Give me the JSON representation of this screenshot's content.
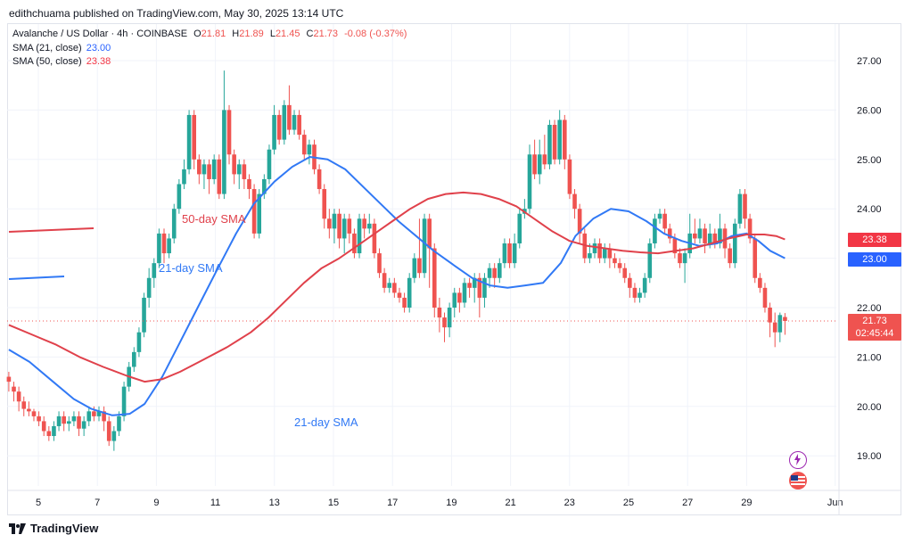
{
  "publisher": "edithchuama published on TradingView.com, May 30, 2025 13:14 UTC",
  "legend": {
    "symbol": "Avalanche / US Dollar · 4h · COINBASE",
    "o_label": "O",
    "o": "21.81",
    "h_label": "H",
    "h": "21.89",
    "l_label": "L",
    "l": "21.45",
    "c_label": "C",
    "c": "21.73",
    "change": "-0.08 (-0.37%)",
    "sma21_label": "SMA (21, close)",
    "sma21_value": "23.00",
    "sma50_label": "SMA (50, close)",
    "sma50_value": "23.38"
  },
  "badges": {
    "sma50": "23.38",
    "sma21": "23.00",
    "price": "21.73",
    "countdown": "02:45:44"
  },
  "annotations": {
    "sma50_text": "50-day SMA",
    "sma21_text_top": "21-day SMA",
    "sma21_text_bottom": "21-day SMA"
  },
  "logo_text": "TradingView",
  "colors": {
    "up": "#26a69a",
    "down": "#ef5350",
    "sma21": "#3179f5",
    "sma50": "#e0414b",
    "sma21_badge": "#2962ff",
    "sma50_badge": "#f23645",
    "price_badge": "#ef5350",
    "grid": "#f0f3fa",
    "axis_text": "#131722"
  },
  "chart_data": {
    "type": "candlestick",
    "title": "Avalanche / US Dollar · 4h · COINBASE",
    "ylim": [
      18.5,
      27.5
    ],
    "y_ticks": [
      "19.00",
      "20.00",
      "21.00",
      "22.00",
      "23.00",
      "24.00",
      "25.00",
      "26.00",
      "27.00"
    ],
    "x_ticks": [
      "5",
      "7",
      "9",
      "11",
      "13",
      "15",
      "17",
      "19",
      "21",
      "23",
      "25",
      "27",
      "29",
      "Jun"
    ],
    "x_tick_days": [
      5,
      7,
      9,
      11,
      13,
      15,
      17,
      19,
      21,
      23,
      25,
      27,
      29,
      32
    ],
    "last_price": 21.73,
    "candles": [
      [
        20.6,
        20.5,
        20.7,
        20.3
      ],
      [
        20.4,
        20.3,
        20.5,
        20.1
      ],
      [
        20.3,
        20.1,
        20.4,
        19.9
      ],
      [
        20.1,
        19.95,
        20.2,
        19.8
      ],
      [
        19.95,
        19.9,
        20.1,
        19.8
      ],
      [
        19.9,
        19.8,
        19.95,
        19.7
      ],
      [
        19.8,
        19.7,
        19.9,
        19.6
      ],
      [
        19.7,
        19.5,
        19.8,
        19.4
      ],
      [
        19.5,
        19.4,
        19.6,
        19.3
      ],
      [
        19.4,
        19.6,
        19.7,
        19.3
      ],
      [
        19.6,
        19.8,
        19.9,
        19.5
      ],
      [
        19.8,
        19.65,
        19.9,
        19.5
      ],
      [
        19.65,
        19.7,
        19.8,
        19.5
      ],
      [
        19.7,
        19.8,
        19.9,
        19.6
      ],
      [
        19.8,
        19.55,
        19.9,
        19.4
      ],
      [
        19.55,
        19.7,
        19.8,
        19.4
      ],
      [
        19.7,
        19.9,
        20.0,
        19.6
      ],
      [
        19.9,
        19.8,
        20.0,
        19.7
      ],
      [
        19.8,
        19.9,
        20.0,
        19.7
      ],
      [
        19.9,
        19.7,
        20.0,
        19.5
      ],
      [
        19.7,
        19.3,
        19.8,
        19.2
      ],
      [
        19.3,
        19.5,
        19.6,
        19.1
      ],
      [
        19.5,
        19.8,
        19.9,
        19.4
      ],
      [
        19.8,
        20.4,
        20.5,
        19.7
      ],
      [
        20.4,
        20.8,
        20.9,
        20.3
      ],
      [
        20.8,
        21.1,
        21.2,
        20.7
      ],
      [
        21.1,
        21.5,
        21.6,
        21.0
      ],
      [
        21.5,
        22.2,
        22.3,
        21.4
      ],
      [
        22.2,
        22.6,
        22.8,
        22.0
      ],
      [
        22.6,
        22.9,
        23.0,
        22.4
      ],
      [
        22.9,
        23.5,
        23.6,
        22.8
      ],
      [
        23.5,
        23.1,
        23.6,
        22.9
      ],
      [
        23.1,
        23.4,
        23.5,
        23.0
      ],
      [
        23.4,
        24.0,
        24.1,
        23.3
      ],
      [
        24.0,
        24.5,
        24.6,
        23.9
      ],
      [
        24.5,
        24.8,
        25.0,
        24.4
      ],
      [
        24.8,
        25.9,
        26.0,
        24.7
      ],
      [
        25.9,
        25.0,
        26.0,
        24.8
      ],
      [
        25.0,
        24.7,
        25.1,
        24.5
      ],
      [
        24.7,
        24.9,
        25.0,
        24.4
      ],
      [
        24.9,
        24.6,
        25.0,
        24.3
      ],
      [
        24.6,
        25.0,
        25.1,
        24.5
      ],
      [
        25.0,
        24.3,
        25.1,
        24.2
      ],
      [
        24.3,
        26.0,
        26.8,
        24.2
      ],
      [
        26.0,
        25.1,
        26.1,
        24.9
      ],
      [
        25.1,
        24.7,
        25.2,
        24.5
      ],
      [
        24.7,
        24.9,
        25.0,
        24.4
      ],
      [
        24.9,
        24.6,
        25.0,
        24.4
      ],
      [
        24.6,
        24.4,
        24.7,
        24.2
      ],
      [
        24.4,
        23.5,
        24.5,
        23.4
      ],
      [
        23.5,
        24.3,
        24.4,
        23.4
      ],
      [
        24.3,
        24.6,
        24.7,
        24.2
      ],
      [
        24.6,
        25.2,
        25.3,
        24.5
      ],
      [
        25.2,
        25.9,
        26.1,
        25.1
      ],
      [
        25.9,
        25.4,
        26.0,
        25.3
      ],
      [
        25.4,
        26.1,
        26.2,
        25.3
      ],
      [
        26.1,
        25.6,
        26.5,
        25.5
      ],
      [
        25.6,
        25.9,
        26.0,
        25.5
      ],
      [
        25.9,
        25.5,
        26.0,
        25.4
      ],
      [
        25.5,
        25.1,
        25.6,
        25.0
      ],
      [
        25.1,
        25.3,
        25.4,
        24.9
      ],
      [
        25.3,
        24.8,
        25.4,
        24.7
      ],
      [
        24.8,
        24.4,
        24.9,
        24.3
      ],
      [
        24.4,
        23.8,
        24.5,
        23.6
      ],
      [
        23.8,
        23.6,
        24.0,
        23.4
      ],
      [
        23.6,
        23.9,
        24.0,
        23.3
      ],
      [
        23.9,
        23.4,
        24.0,
        23.2
      ],
      [
        23.4,
        23.8,
        23.9,
        23.1
      ],
      [
        23.8,
        23.5,
        23.9,
        23.3
      ],
      [
        23.5,
        23.1,
        23.6,
        23.0
      ],
      [
        23.1,
        23.8,
        23.9,
        23.0
      ],
      [
        23.8,
        23.6,
        23.9,
        23.4
      ],
      [
        23.6,
        23.7,
        23.9,
        23.5
      ],
      [
        23.7,
        23.1,
        23.8,
        23.0
      ],
      [
        23.1,
        22.7,
        23.2,
        22.6
      ],
      [
        22.7,
        22.4,
        22.8,
        22.3
      ],
      [
        22.4,
        22.5,
        22.6,
        22.3
      ],
      [
        22.5,
        22.3,
        22.6,
        22.2
      ],
      [
        22.3,
        22.2,
        22.4,
        22.1
      ],
      [
        22.2,
        22.0,
        22.3,
        21.9
      ],
      [
        22.0,
        22.6,
        22.7,
        21.9
      ],
      [
        22.6,
        23.0,
        23.1,
        22.5
      ],
      [
        23.0,
        22.7,
        23.8,
        22.6
      ],
      [
        22.7,
        23.8,
        23.9,
        22.6
      ],
      [
        23.8,
        23.2,
        23.9,
        22.4
      ],
      [
        23.2,
        22.0,
        23.3,
        21.8
      ],
      [
        22.0,
        21.8,
        22.2,
        21.5
      ],
      [
        21.8,
        21.6,
        21.9,
        21.3
      ],
      [
        21.6,
        22.0,
        22.1,
        21.4
      ],
      [
        22.0,
        22.3,
        22.4,
        21.8
      ],
      [
        22.3,
        22.1,
        22.4,
        21.9
      ],
      [
        22.1,
        22.5,
        22.6,
        22.0
      ],
      [
        22.5,
        22.4,
        22.6,
        22.2
      ],
      [
        22.4,
        22.6,
        22.7,
        22.1
      ],
      [
        22.6,
        22.2,
        22.7,
        21.8
      ],
      [
        22.2,
        22.6,
        22.7,
        22.0
      ],
      [
        22.6,
        22.8,
        22.9,
        22.4
      ],
      [
        22.8,
        22.6,
        22.9,
        22.4
      ],
      [
        22.6,
        22.9,
        23.0,
        22.5
      ],
      [
        22.9,
        23.3,
        23.4,
        22.8
      ],
      [
        23.3,
        22.9,
        23.4,
        22.8
      ],
      [
        22.9,
        23.3,
        23.5,
        22.8
      ],
      [
        23.3,
        23.9,
        24.0,
        23.2
      ],
      [
        23.9,
        24.0,
        24.2,
        23.8
      ],
      [
        24.0,
        25.1,
        25.3,
        23.9
      ],
      [
        25.1,
        24.7,
        25.4,
        24.6
      ],
      [
        24.7,
        25.1,
        25.4,
        24.5
      ],
      [
        25.1,
        24.9,
        25.5,
        24.8
      ],
      [
        24.9,
        25.7,
        25.8,
        24.8
      ],
      [
        25.7,
        25.0,
        25.8,
        24.9
      ],
      [
        25.0,
        25.8,
        26.0,
        24.9
      ],
      [
        25.8,
        25.0,
        25.9,
        24.8
      ],
      [
        25.0,
        24.3,
        25.1,
        24.2
      ],
      [
        24.3,
        24.0,
        24.4,
        23.8
      ],
      [
        24.0,
        23.5,
        24.1,
        23.3
      ],
      [
        23.5,
        23.0,
        23.6,
        22.9
      ],
      [
        23.0,
        23.1,
        23.3,
        22.9
      ],
      [
        23.1,
        23.3,
        23.4,
        23.0
      ],
      [
        23.3,
        23.0,
        23.4,
        22.9
      ],
      [
        23.0,
        23.2,
        23.3,
        22.9
      ],
      [
        23.2,
        23.0,
        23.3,
        22.8
      ],
      [
        23.0,
        22.9,
        23.1,
        22.8
      ],
      [
        22.9,
        22.8,
        23.0,
        22.7
      ],
      [
        22.8,
        22.6,
        22.9,
        22.5
      ],
      [
        22.6,
        22.4,
        22.7,
        22.2
      ],
      [
        22.4,
        22.2,
        22.5,
        22.1
      ],
      [
        22.2,
        22.3,
        22.4,
        22.1
      ],
      [
        22.3,
        22.6,
        22.7,
        22.2
      ],
      [
        22.6,
        23.3,
        23.4,
        22.5
      ],
      [
        23.3,
        23.8,
        23.9,
        23.2
      ],
      [
        23.8,
        23.9,
        24.0,
        23.7
      ],
      [
        23.9,
        23.6,
        24.0,
        23.5
      ],
      [
        23.6,
        23.4,
        23.7,
        23.3
      ],
      [
        23.4,
        23.1,
        23.5,
        23.0
      ],
      [
        23.1,
        22.9,
        23.2,
        22.8
      ],
      [
        22.9,
        23.1,
        23.2,
        22.5
      ],
      [
        23.1,
        23.5,
        23.9,
        23.0
      ],
      [
        23.5,
        23.4,
        23.8,
        23.3
      ],
      [
        23.4,
        23.6,
        23.8,
        23.3
      ],
      [
        23.6,
        23.3,
        23.7,
        23.1
      ],
      [
        23.3,
        23.5,
        23.7,
        23.2
      ],
      [
        23.5,
        23.3,
        23.6,
        23.2
      ],
      [
        23.3,
        23.6,
        23.9,
        23.2
      ],
      [
        23.6,
        23.2,
        23.7,
        23.0
      ],
      [
        23.2,
        22.9,
        23.3,
        22.8
      ],
      [
        22.9,
        23.7,
        23.8,
        22.8
      ],
      [
        23.7,
        24.3,
        24.4,
        23.6
      ],
      [
        24.3,
        23.8,
        24.4,
        23.6
      ],
      [
        23.8,
        23.4,
        23.9,
        23.3
      ],
      [
        23.4,
        22.6,
        23.5,
        22.5
      ],
      [
        22.6,
        22.4,
        22.7,
        22.3
      ],
      [
        22.4,
        22.0,
        22.5,
        21.9
      ],
      [
        22.0,
        21.7,
        22.1,
        21.4
      ],
      [
        21.7,
        21.5,
        21.9,
        21.2
      ],
      [
        21.5,
        21.85,
        21.9,
        21.3
      ],
      [
        21.81,
        21.73,
        21.89,
        21.45
      ]
    ],
    "series": [
      {
        "name": "21-day SMA",
        "values": [
          [
            4.0,
            21.15
          ],
          [
            4.7,
            20.9
          ],
          [
            5.4,
            20.55
          ],
          [
            6.2,
            20.15
          ],
          [
            6.8,
            19.95
          ],
          [
            7.5,
            19.82
          ],
          [
            8.1,
            19.85
          ],
          [
            8.6,
            20.05
          ],
          [
            9.2,
            20.6
          ],
          [
            9.8,
            21.3
          ],
          [
            10.4,
            22.0
          ],
          [
            11.0,
            22.7
          ],
          [
            11.7,
            23.5
          ],
          [
            12.3,
            24.1
          ],
          [
            13.0,
            24.55
          ],
          [
            13.6,
            24.85
          ],
          [
            14.2,
            25.05
          ],
          [
            14.8,
            25.0
          ],
          [
            15.4,
            24.8
          ],
          [
            16.0,
            24.45
          ],
          [
            16.6,
            24.1
          ],
          [
            17.2,
            23.75
          ],
          [
            17.8,
            23.45
          ],
          [
            18.4,
            23.15
          ],
          [
            19.1,
            22.85
          ],
          [
            19.7,
            22.6
          ],
          [
            20.3,
            22.45
          ],
          [
            20.9,
            22.4
          ],
          [
            21.5,
            22.45
          ],
          [
            22.1,
            22.5
          ],
          [
            22.7,
            22.9
          ],
          [
            23.2,
            23.45
          ],
          [
            23.8,
            23.8
          ],
          [
            24.4,
            24.0
          ],
          [
            25.0,
            23.95
          ],
          [
            25.6,
            23.75
          ],
          [
            26.2,
            23.5
          ],
          [
            26.8,
            23.35
          ],
          [
            27.4,
            23.25
          ],
          [
            28.0,
            23.3
          ],
          [
            28.5,
            23.45
          ],
          [
            29.0,
            23.5
          ],
          [
            29.4,
            23.35
          ],
          [
            29.8,
            23.15
          ],
          [
            30.3,
            23.0
          ]
        ]
      },
      {
        "name": "50-day SMA",
        "values": [
          [
            4.0,
            21.65
          ],
          [
            4.8,
            21.45
          ],
          [
            5.6,
            21.25
          ],
          [
            6.4,
            21.0
          ],
          [
            7.2,
            20.8
          ],
          [
            8.0,
            20.62
          ],
          [
            8.6,
            20.5
          ],
          [
            9.2,
            20.55
          ],
          [
            9.8,
            20.7
          ],
          [
            10.6,
            20.95
          ],
          [
            11.4,
            21.2
          ],
          [
            12.2,
            21.5
          ],
          [
            12.8,
            21.8
          ],
          [
            13.4,
            22.15
          ],
          [
            14.0,
            22.5
          ],
          [
            14.6,
            22.8
          ],
          [
            15.2,
            23.0
          ],
          [
            15.8,
            23.25
          ],
          [
            16.4,
            23.5
          ],
          [
            17.0,
            23.75
          ],
          [
            17.6,
            24.0
          ],
          [
            18.2,
            24.2
          ],
          [
            18.8,
            24.3
          ],
          [
            19.4,
            24.33
          ],
          [
            20.0,
            24.3
          ],
          [
            20.6,
            24.2
          ],
          [
            21.2,
            24.05
          ],
          [
            21.8,
            23.8
          ],
          [
            22.4,
            23.55
          ],
          [
            23.0,
            23.35
          ],
          [
            23.6,
            23.25
          ],
          [
            24.2,
            23.2
          ],
          [
            24.8,
            23.15
          ],
          [
            25.4,
            23.12
          ],
          [
            26.0,
            23.1
          ],
          [
            26.6,
            23.15
          ],
          [
            27.2,
            23.2
          ],
          [
            27.8,
            23.3
          ],
          [
            28.4,
            23.4
          ],
          [
            29.0,
            23.48
          ],
          [
            29.6,
            23.48
          ],
          [
            30.0,
            23.45
          ],
          [
            30.3,
            23.38
          ]
        ]
      }
    ]
  }
}
